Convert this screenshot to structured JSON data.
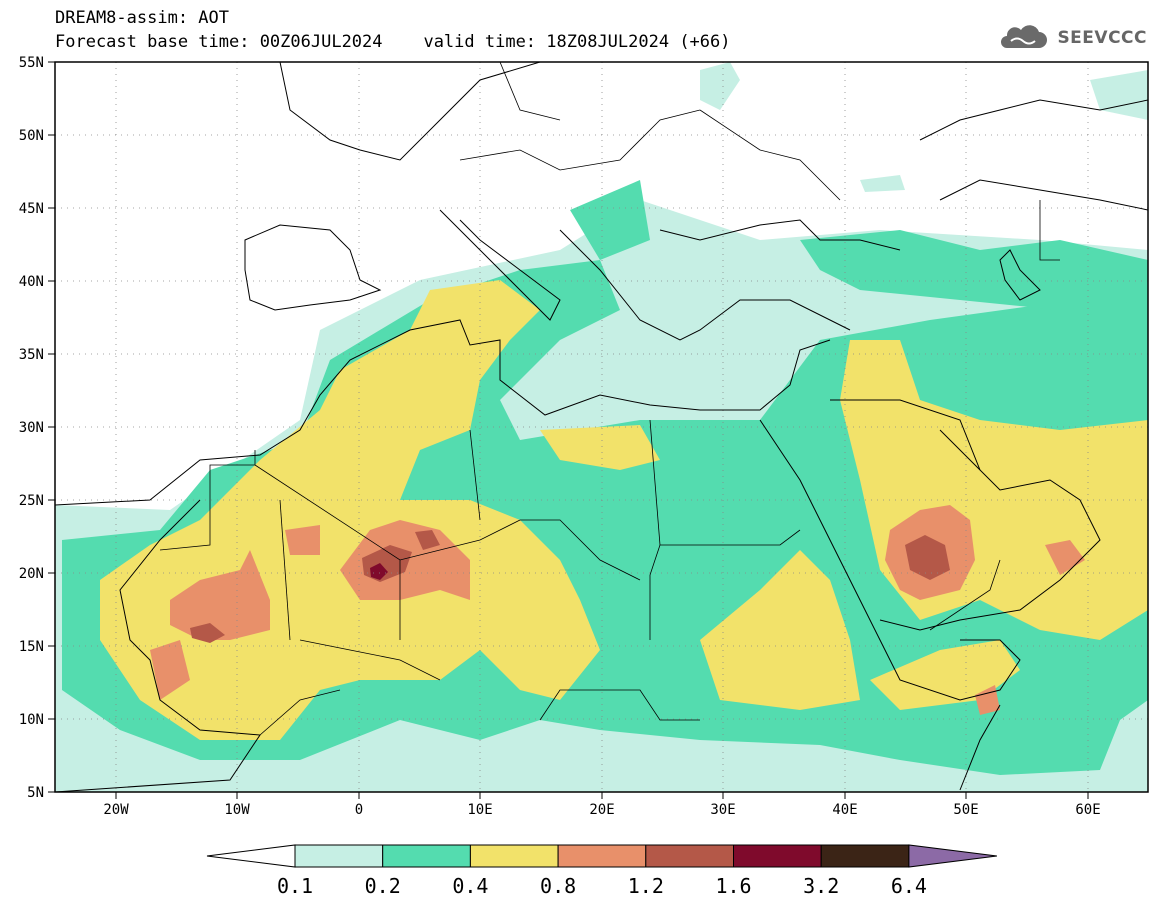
{
  "header": {
    "title_line1": "DREAM8-assim: AOT",
    "title_line2": "Forecast base time: 00Z06JUL2024    valid time: 18Z08JUL2024 (+66)",
    "brand": "SEEVCCC"
  },
  "map": {
    "lat_labels": [
      "55N",
      "50N",
      "45N",
      "40N",
      "35N",
      "30N",
      "25N",
      "20N",
      "15N",
      "10N",
      "5N"
    ],
    "lon_labels": [
      "20W",
      "10W",
      "0",
      "10E",
      "20E",
      "30E",
      "40E",
      "50E",
      "60E"
    ],
    "extent": {
      "lon_min": -25,
      "lon_max": 65,
      "lat_min": 5,
      "lat_max": 55
    },
    "gridlines": "dotted"
  },
  "colorbar": {
    "levels": [
      "0.1",
      "0.2",
      "0.4",
      "0.8",
      "1.2",
      "1.6",
      "3.2",
      "6.4"
    ],
    "colors": [
      "#ffffff",
      "#c6efe4",
      "#54dcaf",
      "#f2e26a",
      "#e8906a",
      "#b45848",
      "#7f0a2c",
      "#3b2416",
      "#8c6aa6"
    ]
  }
}
